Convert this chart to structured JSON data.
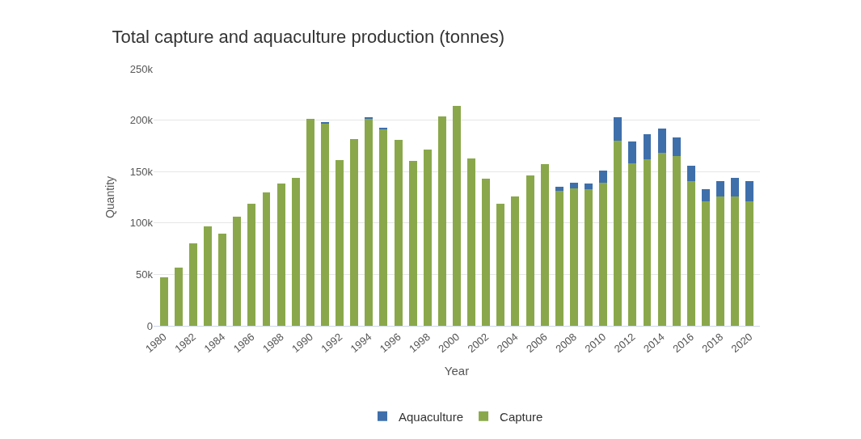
{
  "chart_data": {
    "type": "bar",
    "title": "Total capture and aquaculture production (tonnes)",
    "xlabel": "Year",
    "ylabel": "Quantity",
    "categories": [
      "1980",
      null,
      "1982",
      null,
      "1984",
      null,
      "1986",
      null,
      "1988",
      null,
      "1990",
      null,
      "1992",
      null,
      "1994",
      null,
      "1996",
      null,
      "1998",
      null,
      "2000",
      null,
      "2002",
      null,
      "2004",
      null,
      "2006",
      null,
      "2008",
      null,
      "2010",
      null,
      "2012",
      null,
      "2014",
      null,
      "2016",
      null,
      "2018",
      null,
      "2020"
    ],
    "stacked": true,
    "series": [
      {
        "name": "Capture",
        "color": "#8aa84b",
        "values": [
          47000,
          57000,
          80000,
          97000,
          90000,
          106000,
          119000,
          130000,
          138000,
          144000,
          201000,
          197000,
          161000,
          182000,
          201000,
          191000,
          181000,
          160000,
          171000,
          204000,
          214000,
          163000,
          143000,
          119000,
          126000,
          146000,
          157000,
          131000,
          134000,
          133000,
          139000,
          180000,
          158000,
          162000,
          168000,
          165000,
          141000,
          121000,
          126000,
          126000,
          121000
        ]
      },
      {
        "name": "Aquaculture",
        "color": "#3e6fab",
        "values": [
          0,
          0,
          0,
          0,
          0,
          0,
          0,
          0,
          0,
          0,
          0,
          1000,
          0,
          0,
          2000,
          2000,
          0,
          0,
          0,
          0,
          0,
          0,
          0,
          0,
          0,
          0,
          0,
          4000,
          5000,
          5000,
          12000,
          23000,
          21000,
          24000,
          24000,
          18000,
          15000,
          12000,
          15000,
          18000,
          20000
        ]
      }
    ],
    "ylim": [
      0,
      250000
    ],
    "yticks": [
      0,
      {
        "value": 50000,
        "label": "50k"
      },
      {
        "value": 100000,
        "label": "100k"
      },
      {
        "value": 150000,
        "label": "150k"
      },
      {
        "value": 200000,
        "label": "200k"
      },
      {
        "value": 250000,
        "label": "250k"
      }
    ],
    "grid": "y",
    "legend": "bottom"
  }
}
